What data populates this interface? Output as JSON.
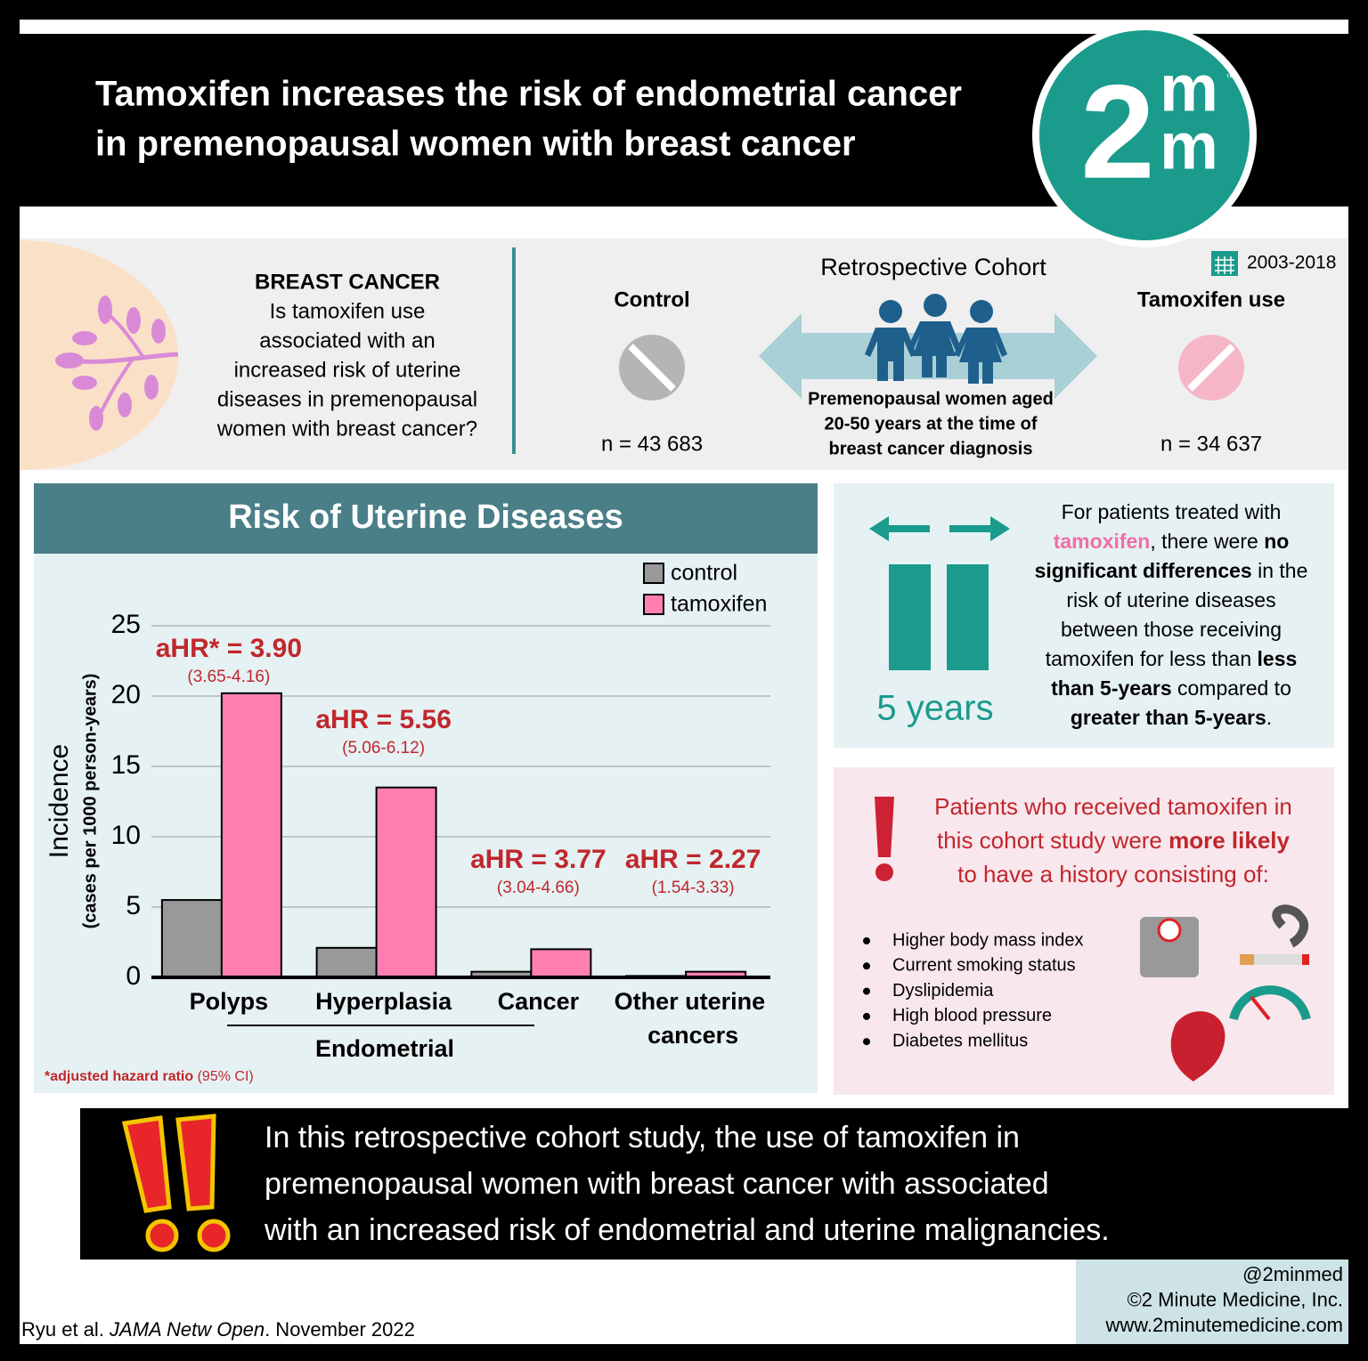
{
  "header": {
    "title_lines": [
      "Tamoxifen increases the risk of endometrial cancer",
      "in premenopausal women with breast cancer"
    ],
    "logo": {
      "digit": "2",
      "m_top": "m",
      "m_bottom": "m",
      "mark": "™"
    }
  },
  "question": {
    "heading": "BREAST CANCER",
    "lines": [
      "Is tamoxifen use",
      "associated with an",
      "increased risk of uterine",
      "diseases in premenopausal",
      "women with breast cancer?"
    ]
  },
  "cohort": {
    "title": "Retrospective Cohort",
    "years": "2003-2018",
    "control": {
      "label": "Control",
      "n": "n = 43 683"
    },
    "tamoxifen": {
      "label": "Tamoxifen use",
      "n": "n = 34 637"
    },
    "population_lines": [
      "Premenopausal women aged",
      "20-50 years at the time of",
      "breast cancer diagnosis"
    ]
  },
  "chart_data": {
    "type": "bar",
    "title": "Risk of Uterine Diseases",
    "y_label": "Incidence",
    "y_sublabel": "(cases per 1000 person-years)",
    "categories": [
      "Polyps",
      "Hyperplasia",
      "Cancer",
      "Other uterine cancers"
    ],
    "group_label": "Endometrial",
    "series": [
      {
        "name": "control",
        "color": "#999999",
        "values": [
          5.5,
          2.1,
          0.4,
          0.1
        ]
      },
      {
        "name": "tamoxifen",
        "color": "#ff80b0",
        "values": [
          20.2,
          13.5,
          2.0,
          0.4
        ]
      }
    ],
    "annotations": [
      {
        "label": "aHR* = 3.90",
        "ci": "(3.65-4.16)"
      },
      {
        "label": "aHR = 5.56",
        "ci": "(5.06-6.12)"
      },
      {
        "label": "aHR = 3.77",
        "ci": "(3.04-4.66)"
      },
      {
        "label": "aHR = 2.27",
        "ci": "(1.54-3.33)"
      }
    ],
    "footnote": [
      {
        "text": "*adjusted hazard ratio",
        "bold": true
      },
      {
        "text": " (95% CI)"
      }
    ],
    "ylim": [
      0,
      25
    ],
    "yticks": [
      0,
      5,
      10,
      15,
      20,
      25
    ],
    "grid": true
  },
  "duration": {
    "label": "5 years",
    "lines": [
      [
        {
          "text": "For patients treated with"
        }
      ],
      [
        {
          "text": "tamoxifen",
          "bold": true,
          "color": "#f06fa5"
        },
        {
          "text": ", there were "
        },
        {
          "text": "no",
          "bold": true
        }
      ],
      [
        {
          "text": "significant differences",
          "bold": true
        },
        {
          "text": " in the"
        }
      ],
      [
        {
          "text": "risk of uterine diseases"
        }
      ],
      [
        {
          "text": "between those receiving"
        }
      ],
      [
        {
          "text": "tamoxifen for less than "
        },
        {
          "text": "less",
          "bold": true
        }
      ],
      [
        {
          "text": "than 5-years",
          "bold": true
        },
        {
          "text": " compared to"
        }
      ],
      [
        {
          "text": "greater than 5-years",
          "bold": true
        },
        {
          "text": "."
        }
      ]
    ]
  },
  "history": {
    "lines": [
      [
        {
          "text": "Patients who received tamoxifen in"
        }
      ],
      [
        {
          "text": "this cohort study were "
        },
        {
          "text": "more likely",
          "bold": true
        }
      ],
      [
        {
          "text": "to have a history consisting of:"
        }
      ]
    ],
    "items": [
      "Higher body mass index",
      "Current smoking status",
      "Dyslipidemia",
      "High blood pressure",
      "Diabetes mellitus"
    ]
  },
  "conclusion": {
    "lines": [
      "In this retrospective cohort study, the use of tamoxifen in",
      "premenopausal women with breast cancer with associated",
      "with an increased risk of endometrial and uterine malignancies."
    ]
  },
  "credits": {
    "handle": "@2minmed",
    "company": "©2 Minute Medicine, Inc.",
    "url": "www.2minutemedicine.com"
  },
  "citation": [
    {
      "text": "Ryu et al. "
    },
    {
      "text": "JAMA Netw Open",
      "italic": true
    },
    {
      "text": ". November 2022"
    }
  ]
}
